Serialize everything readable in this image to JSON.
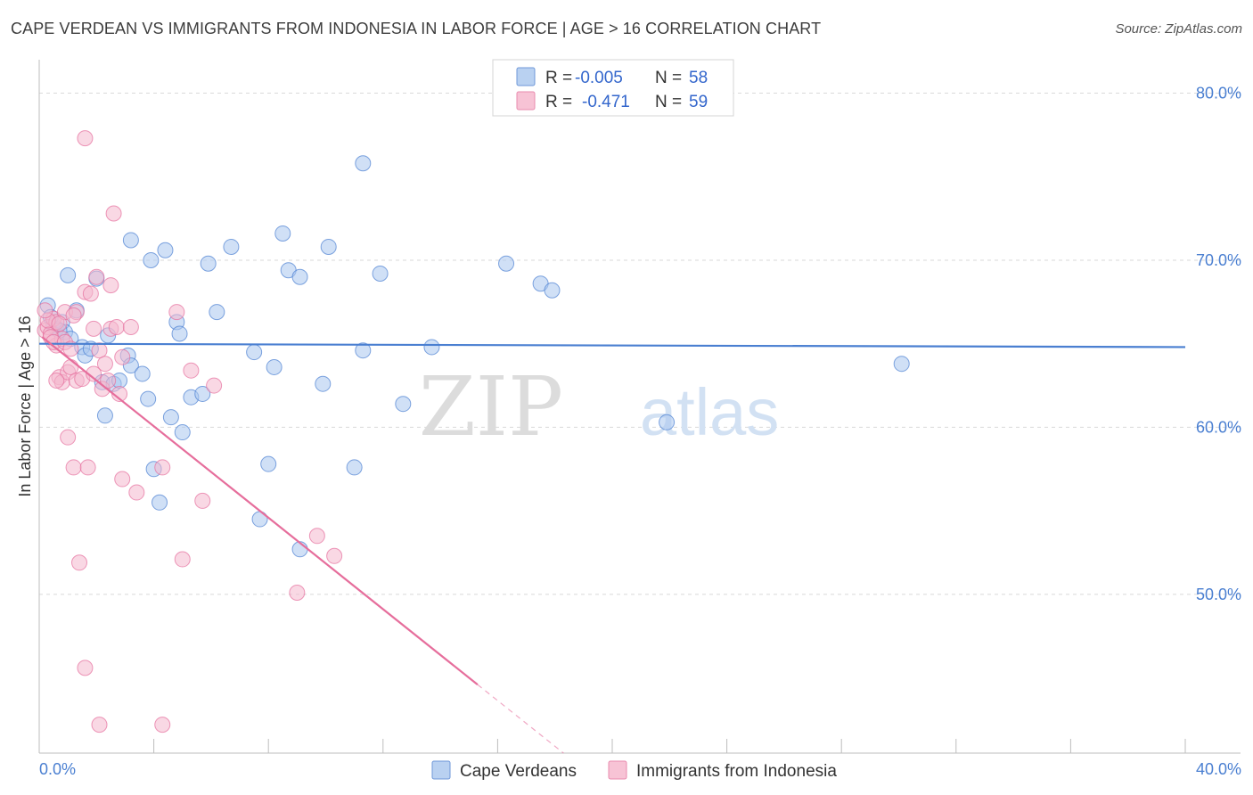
{
  "header": {
    "title": "CAPE VERDEAN VS IMMIGRANTS FROM INDONESIA IN LABOR FORCE | AGE > 16 CORRELATION CHART",
    "source": "Source: ZipAtlas.com"
  },
  "watermark": {
    "zip": "ZIP",
    "atlas": "atlas"
  },
  "colors": {
    "blue": "#4a7fd1",
    "blue_fill": "#a9c6ee",
    "pink": "#e66e9c",
    "pink_fill": "#f4b8cd",
    "grid": "#d9d9d9"
  },
  "legend_top": {
    "rows": [
      {
        "r_label": "R =",
        "r_value": "-0.005",
        "n_label": "N =",
        "n_value": "58"
      },
      {
        "r_label": "R =",
        "r_value": "-0.471",
        "n_label": "N =",
        "n_value": "59"
      }
    ]
  },
  "chart_data": {
    "type": "scatter",
    "title": "CAPE VERDEAN VS IMMIGRANTS FROM INDONESIA IN LABOR FORCE | AGE > 16 CORRELATION CHART",
    "xlabel": "",
    "ylabel": "In Labor Force | Age > 16",
    "xlim": [
      0,
      40
    ],
    "ylim": [
      40.5,
      82
    ],
    "x_tick_labels": [
      "0.0%",
      "40.0%"
    ],
    "y_ticks": [
      50,
      60,
      70,
      80
    ],
    "y_tick_labels": [
      "50.0%",
      "60.0%",
      "70.0%",
      "80.0%"
    ],
    "grid": true,
    "legend_position": "bottom",
    "series": [
      {
        "name": "Cape Verdeans",
        "color": "#4a7fd1",
        "trend": {
          "x": [
            0,
            40
          ],
          "y": [
            65.0,
            64.8
          ]
        },
        "points": [
          [
            0.3,
            67.3
          ],
          [
            0.5,
            66.1
          ],
          [
            0.6,
            65.9
          ],
          [
            0.8,
            66.3
          ],
          [
            0.9,
            65.7
          ],
          [
            1.0,
            69.1
          ],
          [
            1.1,
            65.3
          ],
          [
            1.3,
            67.0
          ],
          [
            1.5,
            64.8
          ],
          [
            1.6,
            64.3
          ],
          [
            1.8,
            64.7
          ],
          [
            2.0,
            68.9
          ],
          [
            2.2,
            62.7
          ],
          [
            2.3,
            60.7
          ],
          [
            2.4,
            65.5
          ],
          [
            2.6,
            62.6
          ],
          [
            2.8,
            62.8
          ],
          [
            3.1,
            64.3
          ],
          [
            3.2,
            63.7
          ],
          [
            3.2,
            71.2
          ],
          [
            3.6,
            63.2
          ],
          [
            3.8,
            61.7
          ],
          [
            3.9,
            70.0
          ],
          [
            4.0,
            57.5
          ],
          [
            4.2,
            55.5
          ],
          [
            4.4,
            70.6
          ],
          [
            4.6,
            60.6
          ],
          [
            4.8,
            66.3
          ],
          [
            4.9,
            65.6
          ],
          [
            5.0,
            59.7
          ],
          [
            5.3,
            61.8
          ],
          [
            5.7,
            62.0
          ],
          [
            5.9,
            69.8
          ],
          [
            6.2,
            66.9
          ],
          [
            6.7,
            70.8
          ],
          [
            7.5,
            64.5
          ],
          [
            7.7,
            54.5
          ],
          [
            8.0,
            57.8
          ],
          [
            8.2,
            63.6
          ],
          [
            8.5,
            71.6
          ],
          [
            8.7,
            69.4
          ],
          [
            9.1,
            52.7
          ],
          [
            9.1,
            69.0
          ],
          [
            9.9,
            62.6
          ],
          [
            10.1,
            70.8
          ],
          [
            11.0,
            57.6
          ],
          [
            11.3,
            64.6
          ],
          [
            11.3,
            75.8
          ],
          [
            11.9,
            69.2
          ],
          [
            12.7,
            61.4
          ],
          [
            13.7,
            64.8
          ],
          [
            16.3,
            69.8
          ],
          [
            17.5,
            68.6
          ],
          [
            17.9,
            68.2
          ],
          [
            21.9,
            60.3
          ],
          [
            30.1,
            63.8
          ],
          [
            0.4,
            66.6
          ],
          [
            0.7,
            65.8
          ]
        ]
      },
      {
        "name": "Immigrants from Indonesia",
        "color": "#e66e9c",
        "trend": {
          "x": [
            0.1,
            15.3
          ],
          "y": [
            65.4,
            44.6
          ],
          "dash_x": [
            15.3,
            18.3
          ],
          "dash_y": [
            44.6,
            40.5
          ]
        },
        "points": [
          [
            0.2,
            65.8
          ],
          [
            0.3,
            66.0
          ],
          [
            0.4,
            65.6
          ],
          [
            0.5,
            66.5
          ],
          [
            0.6,
            64.9
          ],
          [
            0.6,
            66.3
          ],
          [
            0.7,
            63.0
          ],
          [
            0.8,
            65.3
          ],
          [
            0.8,
            62.7
          ],
          [
            0.9,
            66.9
          ],
          [
            1.0,
            63.3
          ],
          [
            1.0,
            59.4
          ],
          [
            1.1,
            63.6
          ],
          [
            1.2,
            57.6
          ],
          [
            1.3,
            62.8
          ],
          [
            1.3,
            66.9
          ],
          [
            1.4,
            51.9
          ],
          [
            1.5,
            62.9
          ],
          [
            1.6,
            68.1
          ],
          [
            1.6,
            77.3
          ],
          [
            1.6,
            45.6
          ],
          [
            1.7,
            57.6
          ],
          [
            1.8,
            68.0
          ],
          [
            1.9,
            65.9
          ],
          [
            1.9,
            63.2
          ],
          [
            2.0,
            69.0
          ],
          [
            2.1,
            64.6
          ],
          [
            2.1,
            42.2
          ],
          [
            2.2,
            62.3
          ],
          [
            2.3,
            63.8
          ],
          [
            2.4,
            62.8
          ],
          [
            2.5,
            65.9
          ],
          [
            2.5,
            68.5
          ],
          [
            2.6,
            72.8
          ],
          [
            2.7,
            66.0
          ],
          [
            2.8,
            62.0
          ],
          [
            2.9,
            64.2
          ],
          [
            2.9,
            56.9
          ],
          [
            3.2,
            66.0
          ],
          [
            3.4,
            56.1
          ],
          [
            4.3,
            57.6
          ],
          [
            4.3,
            42.2
          ],
          [
            4.8,
            66.9
          ],
          [
            5.0,
            52.1
          ],
          [
            5.3,
            63.4
          ],
          [
            5.7,
            55.6
          ],
          [
            6.1,
            62.5
          ],
          [
            9.0,
            50.1
          ],
          [
            9.7,
            53.5
          ],
          [
            10.3,
            52.3
          ],
          [
            0.3,
            66.4
          ],
          [
            0.4,
            65.4
          ],
          [
            0.5,
            65.1
          ],
          [
            0.7,
            66.2
          ],
          [
            0.9,
            65.1
          ],
          [
            1.1,
            64.7
          ],
          [
            1.2,
            66.7
          ],
          [
            0.2,
            67.0
          ],
          [
            0.6,
            62.8
          ]
        ]
      }
    ]
  }
}
